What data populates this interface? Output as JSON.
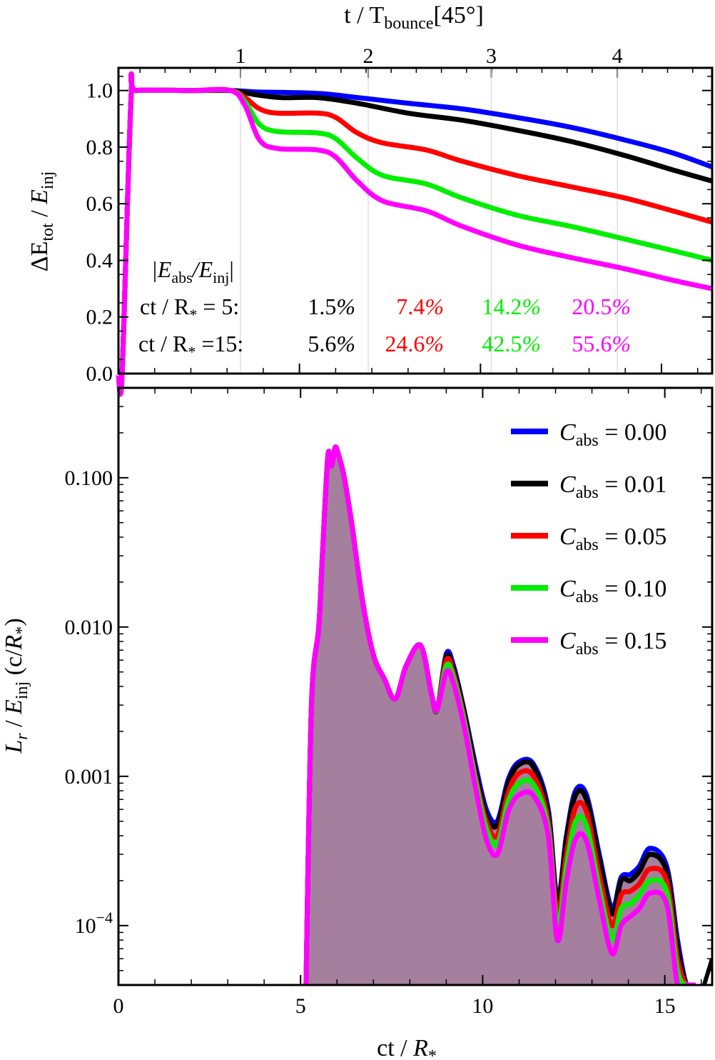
{
  "top_axis": {
    "label": "t / T",
    "label_sub": "bounce",
    "label_suffix": "[45°]",
    "ticks": [
      1,
      2,
      3,
      4
    ]
  },
  "chart_data": [
    {
      "type": "line",
      "panel": "top",
      "title": "",
      "xlabel": "",
      "ylabel": "ΔE_tot / E_inj",
      "ylabel_parts": {
        "delta": "ΔE",
        "sub1": "tot",
        "mid": " / ",
        "e": "E",
        "sub2": "inj"
      },
      "xlim": [
        0,
        16.4
      ],
      "ylim": [
        0,
        1.08
      ],
      "y_ticks": [
        "0.0",
        "0.2",
        "0.4",
        "0.6",
        "0.8",
        "1.0"
      ],
      "grid_x": [
        3.37,
        6.9,
        10.3,
        13.78
      ],
      "series": [
        {
          "name": "C_abs = 0.00",
          "color": "#0000ff",
          "x": [
            0,
            0.1,
            0.35,
            0.5,
            2.0,
            3.1,
            3.8,
            5.5,
            6.6,
            8.0,
            9.5,
            11.0,
            12.5,
            14.0,
            15.3,
            16.4
          ],
          "y": [
            0,
            0.0,
            0.98,
            1.0,
            1.0,
            1.0,
            0.995,
            0.99,
            0.975,
            0.955,
            0.935,
            0.905,
            0.87,
            0.825,
            0.78,
            0.73
          ]
        },
        {
          "name": "C_abs = 0.01",
          "color": "#000000",
          "x": [
            0,
            0.1,
            0.35,
            0.5,
            2.0,
            3.1,
            3.8,
            4.5,
            5.5,
            6.6,
            8.0,
            9.5,
            11.0,
            12.5,
            14.0,
            15.3,
            16.4
          ],
          "y": [
            0,
            0.0,
            0.98,
            1.0,
            1.0,
            1.0,
            0.985,
            0.975,
            0.975,
            0.955,
            0.92,
            0.895,
            0.86,
            0.82,
            0.77,
            0.72,
            0.68
          ]
        },
        {
          "name": "C_abs = 0.05",
          "color": "#ff0000",
          "x": [
            0,
            0.1,
            0.35,
            0.5,
            2.0,
            3.1,
            3.5,
            3.9,
            4.4,
            5.5,
            6.0,
            6.6,
            7.3,
            8.5,
            9.5,
            11.0,
            12.5,
            14.0,
            15.3,
            16.4
          ],
          "y": [
            0,
            0.0,
            0.98,
            1.0,
            1.0,
            1.0,
            0.975,
            0.935,
            0.92,
            0.92,
            0.905,
            0.85,
            0.815,
            0.79,
            0.75,
            0.7,
            0.66,
            0.62,
            0.575,
            0.535
          ]
        },
        {
          "name": "C_abs = 0.10",
          "color": "#00ee00",
          "x": [
            0,
            0.1,
            0.35,
            0.5,
            2.0,
            3.1,
            3.5,
            3.9,
            4.4,
            5.5,
            6.0,
            6.6,
            7.3,
            8.5,
            9.5,
            11.0,
            12.5,
            14.0,
            15.3,
            16.4
          ],
          "y": [
            0,
            0.0,
            0.98,
            1.0,
            1.0,
            1.0,
            0.96,
            0.88,
            0.855,
            0.85,
            0.83,
            0.76,
            0.7,
            0.67,
            0.62,
            0.56,
            0.52,
            0.475,
            0.435,
            0.4
          ]
        },
        {
          "name": "C_abs = 0.15",
          "color": "#ff00ff",
          "x": [
            0,
            0.1,
            0.35,
            0.5,
            2.0,
            3.1,
            3.5,
            3.9,
            4.4,
            5.5,
            6.0,
            6.6,
            7.3,
            8.5,
            9.5,
            11.0,
            12.5,
            14.0,
            15.3,
            16.4
          ],
          "y": [
            0,
            0.0,
            0.98,
            1.0,
            1.0,
            1.0,
            0.945,
            0.825,
            0.795,
            0.79,
            0.765,
            0.68,
            0.61,
            0.575,
            0.52,
            0.455,
            0.41,
            0.37,
            0.33,
            0.3
          ]
        }
      ],
      "annotations": {
        "header_abs": "|E",
        "header_abs_sub": "abs",
        "header_slash": "/E",
        "header_inj_sub": "inj",
        "header_end": "|",
        "row1_label": "ct / R",
        "row1_star": "*",
        "row1_eq": " = 5:",
        "row1_values": [
          "1.5%",
          "7.4%",
          "14.2%",
          "20.5%"
        ],
        "row2_label": "ct / R",
        "row2_star": "*",
        "row2_eq": " =15:",
        "row2_values": [
          "5.6%",
          "24.6%",
          "42.5%",
          "55.6%"
        ],
        "value_colors": [
          "#000000",
          "#ff0000",
          "#00ee00",
          "#ff00ff"
        ]
      }
    },
    {
      "type": "area",
      "panel": "bottom",
      "title": "",
      "xlabel": "ct / R*",
      "xlabel_parts": {
        "pre": "ct / ",
        "r": "R",
        "star": "*"
      },
      "ylabel": "L_r / E_inj (c/R*)",
      "ylabel_parts": {
        "l": "L",
        "r": "r",
        "mid": " / ",
        "e": "E",
        "sub": "inj",
        "unit": " (c/",
        "R": "R",
        "star": "*",
        "close": ")"
      },
      "scale": "log",
      "xlim": [
        0,
        16.3
      ],
      "ylim": [
        4e-05,
        0.4
      ],
      "x_ticks": [
        "0",
        "5",
        "10",
        "15"
      ],
      "y_ticks": [
        {
          "value": 0.1,
          "label": "0.100"
        },
        {
          "value": 0.01,
          "label": "0.010"
        },
        {
          "value": 0.001,
          "label": "0.001"
        },
        {
          "value": 0.0001,
          "label": "10",
          "exp": "−4"
        }
      ],
      "fill_color": "#a57f9e",
      "x": [
        5.15,
        5.3,
        5.5,
        5.6,
        5.75,
        5.85,
        5.95,
        6.05,
        6.2,
        6.4,
        6.7,
        7.0,
        7.3,
        7.6,
        7.9,
        8.3,
        8.6,
        8.75,
        9.0,
        9.2,
        9.5,
        9.8,
        10.1,
        10.4,
        10.7,
        11.0,
        11.4,
        11.8,
        12.05,
        12.3,
        12.55,
        12.85,
        13.2,
        13.55,
        13.8,
        14.05,
        14.3,
        14.6,
        15.05,
        15.35,
        15.6,
        15.85
      ],
      "series": [
        {
          "name": "C_abs = 0.00",
          "color": "#0000ff",
          "y": [
            4e-05,
            0.003,
            0.01,
            0.03,
            0.14,
            0.12,
            0.16,
            0.14,
            0.1,
            0.05,
            0.015,
            0.0065,
            0.0045,
            0.0033,
            0.0055,
            0.0075,
            0.0035,
            0.0028,
            0.0066,
            0.0055,
            0.0027,
            0.0012,
            0.0006,
            0.0005,
            0.00095,
            0.00125,
            0.0012,
            0.0006,
            0.00015,
            0.0004,
            0.0008,
            0.00075,
            0.0003,
            0.00013,
            0.00021,
            0.00022,
            0.00025,
            0.00033,
            0.00025,
            8e-05,
            4e-05,
            4e-05
          ]
        },
        {
          "name": "C_abs = 0.01",
          "color": "#000000",
          "y": [
            4e-05,
            0.003,
            0.01,
            0.03,
            0.14,
            0.12,
            0.16,
            0.14,
            0.1,
            0.05,
            0.015,
            0.0065,
            0.0045,
            0.0033,
            0.0055,
            0.0075,
            0.0035,
            0.0028,
            0.0063,
            0.0052,
            0.0026,
            0.0011,
            0.00055,
            0.00047,
            0.0009,
            0.0012,
            0.00115,
            0.00055,
            0.00014,
            0.00038,
            0.00075,
            0.0007,
            0.00028,
            0.00012,
            0.0002,
            0.0002,
            0.00023,
            0.0003,
            0.00023,
            7e-05,
            4e-05,
            4e-05
          ]
        },
        {
          "name": "C_abs = 0.05",
          "color": "#ff0000",
          "y": [
            4e-05,
            0.003,
            0.01,
            0.03,
            0.14,
            0.12,
            0.16,
            0.14,
            0.1,
            0.05,
            0.015,
            0.0065,
            0.0045,
            0.0033,
            0.0055,
            0.0075,
            0.0035,
            0.0028,
            0.006,
            0.0049,
            0.0024,
            0.001,
            0.0005,
            0.0004,
            0.00078,
            0.00105,
            0.001,
            0.0005,
            0.00012,
            0.0003,
            0.00062,
            0.00058,
            0.00022,
            0.0001,
            0.00016,
            0.00017,
            0.00019,
            0.00024,
            0.0002,
            6e-05,
            4e-05,
            4e-05
          ]
        },
        {
          "name": "C_abs = 0.10",
          "color": "#00ee00",
          "y": [
            4e-05,
            0.003,
            0.01,
            0.03,
            0.14,
            0.12,
            0.16,
            0.14,
            0.1,
            0.05,
            0.015,
            0.0065,
            0.0045,
            0.0033,
            0.0055,
            0.0075,
            0.0035,
            0.0028,
            0.0055,
            0.0046,
            0.0023,
            0.00095,
            0.00045,
            0.00035,
            0.00068,
            0.0009,
            0.00088,
            0.00045,
            0.0001,
            0.00025,
            0.0005,
            0.00047,
            0.00018,
            8e-05,
            0.00013,
            0.00014,
            0.00016,
            0.0002,
            0.00017,
            5e-05,
            4e-05,
            4e-05
          ]
        },
        {
          "name": "C_abs = 0.15",
          "color": "#ff00ff",
          "y": [
            4e-05,
            0.003,
            0.01,
            0.03,
            0.14,
            0.12,
            0.16,
            0.14,
            0.1,
            0.05,
            0.015,
            0.0065,
            0.0045,
            0.0033,
            0.0055,
            0.0075,
            0.0035,
            0.0028,
            0.005,
            0.0042,
            0.0021,
            0.00085,
            0.00038,
            0.0003,
            0.00058,
            0.00075,
            0.00074,
            0.0004,
            8e-05,
            0.0002,
            0.00038,
            0.00037,
            0.00015,
            6.5e-05,
            0.0001,
            0.000115,
            0.00013,
            0.000165,
            0.00014,
            4e-05,
            4e-05,
            4e-05
          ]
        }
      ],
      "legend": {
        "position": "top-right",
        "items": [
          {
            "label_c": "C",
            "label_sub": "abs",
            "label_val": " = 0.00",
            "color": "#0000ff"
          },
          {
            "label_c": "C",
            "label_sub": "abs",
            "label_val": " = 0.01",
            "color": "#000000"
          },
          {
            "label_c": "C",
            "label_sub": "abs",
            "label_val": " = 0.05",
            "color": "#ff0000"
          },
          {
            "label_c": "C",
            "label_sub": "abs",
            "label_val": " = 0.10",
            "color": "#00ee00"
          },
          {
            "label_c": "C",
            "label_sub": "abs",
            "label_val": " = 0.15",
            "color": "#ff00ff"
          }
        ]
      }
    }
  ]
}
